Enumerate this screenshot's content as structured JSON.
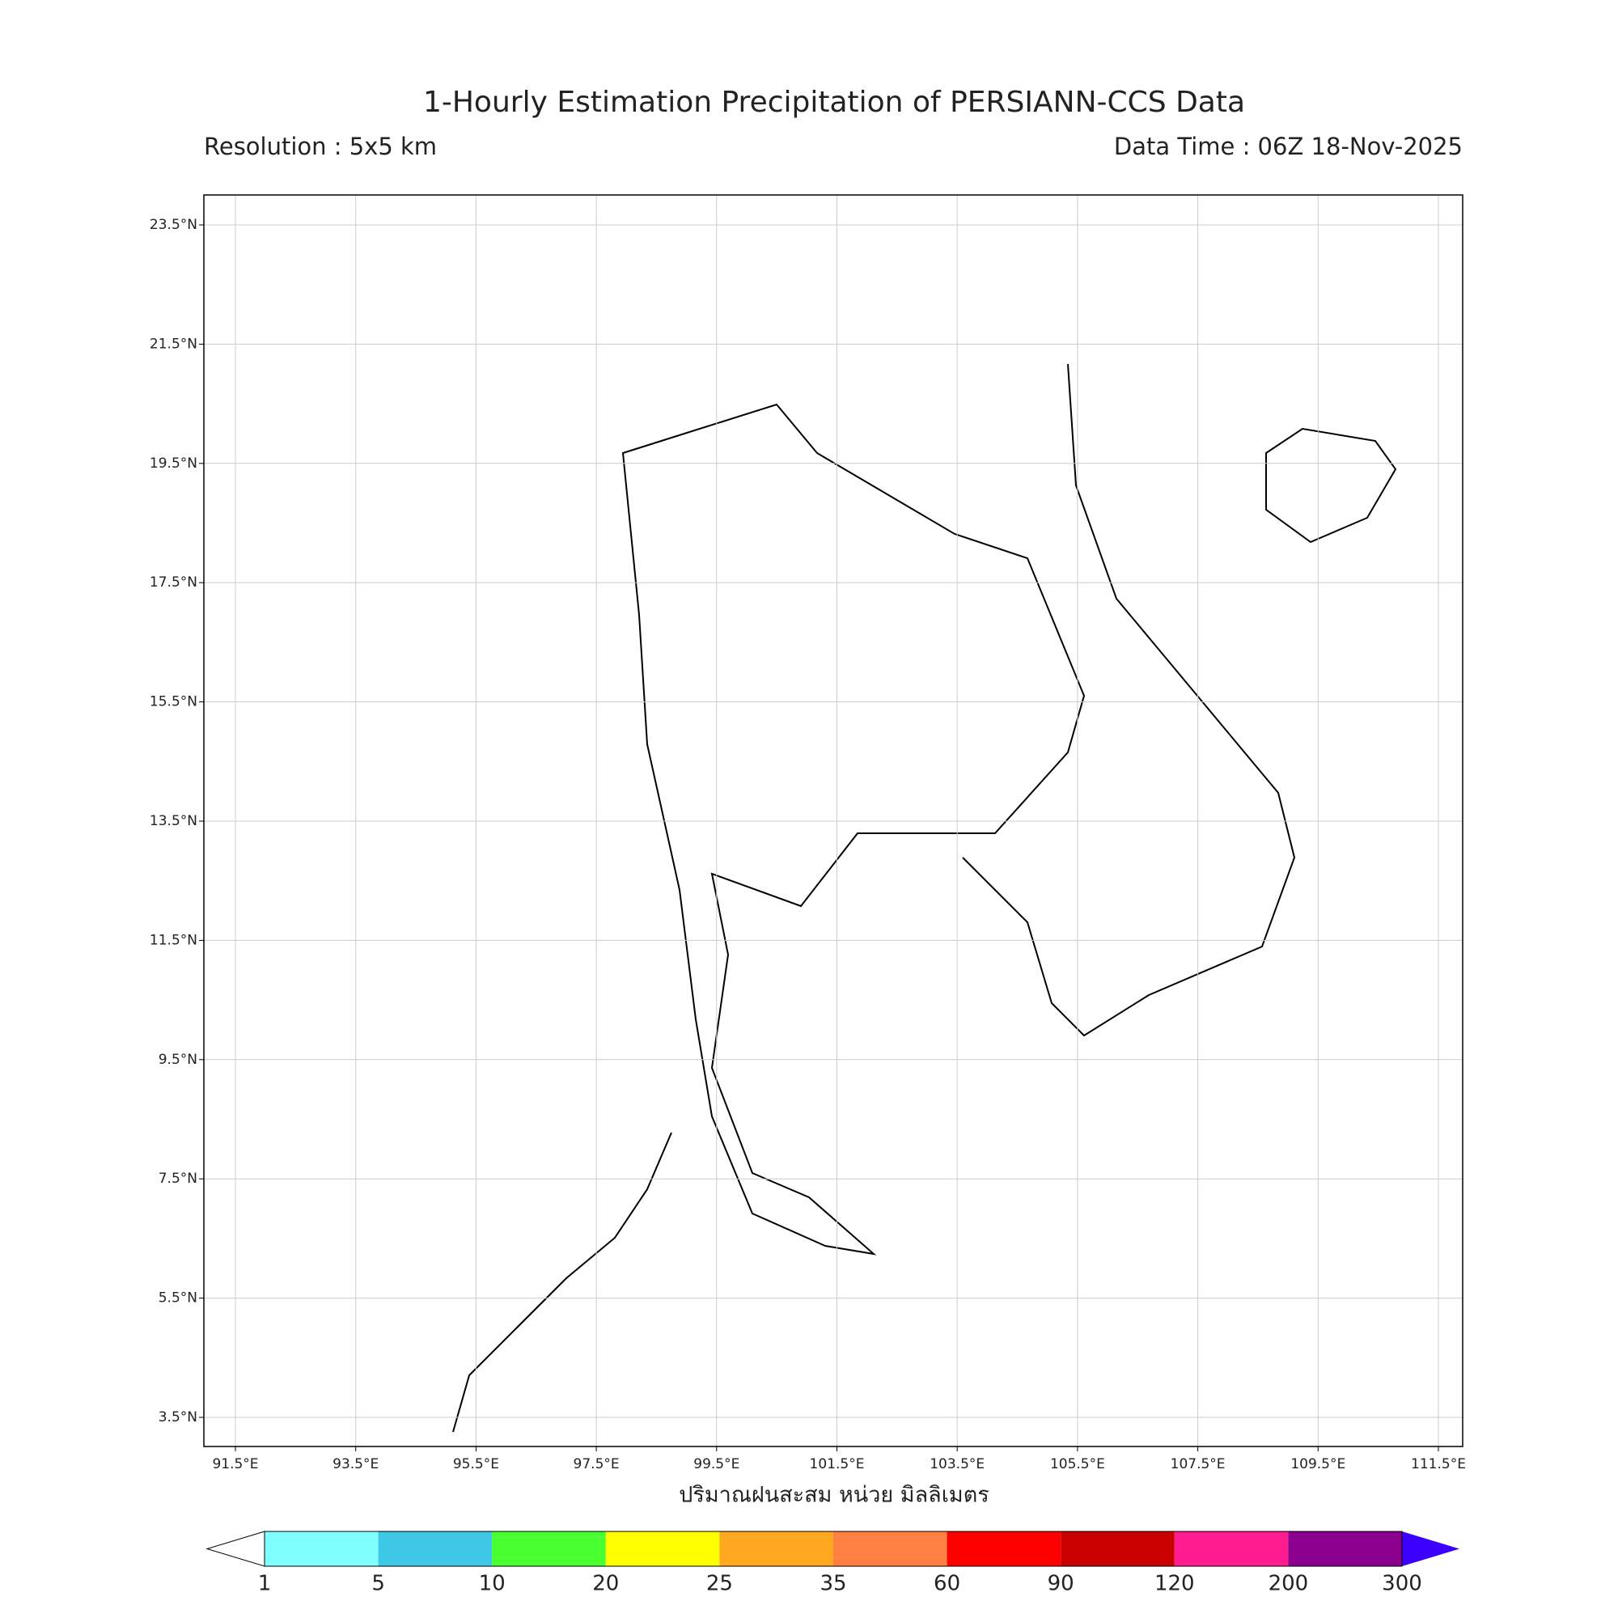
{
  "header": {
    "title": "1-Hourly Estimation Precipitation of PERSIANN-CCS Data",
    "resolution": "Resolution : 5x5 km",
    "data_time": "Data Time : 06Z 18-Nov-2025"
  },
  "map": {
    "lat_labels": [
      "23.5°N",
      "21.5°N",
      "19.5°N",
      "17.5°N",
      "15.5°N",
      "13.5°N",
      "11.5°N",
      "9.5°N",
      "7.5°N",
      "5.5°N",
      "3.5°N"
    ],
    "lon_labels": [
      "91.5°E",
      "93.5°E",
      "95.5°E",
      "97.5°E",
      "99.5°E",
      "101.5°E",
      "103.5°E",
      "105.5°E",
      "107.5°E",
      "109.5°E",
      "111.5°E"
    ],
    "axis_label": "ปริมาณฝนสะสม หน่วย มิลลิเมตร"
  },
  "colorbar": {
    "levels": [
      1,
      5,
      10,
      20,
      25,
      35,
      60,
      90,
      120,
      200,
      300
    ],
    "colors": [
      "#80ffff",
      "#40c8e8",
      "#48ff30",
      "#ffff00",
      "#ffa820",
      "#ff8040",
      "#ff0000",
      "#c80000",
      "#ff1c90",
      "#8c0090",
      "#3c00ff"
    ]
  }
}
